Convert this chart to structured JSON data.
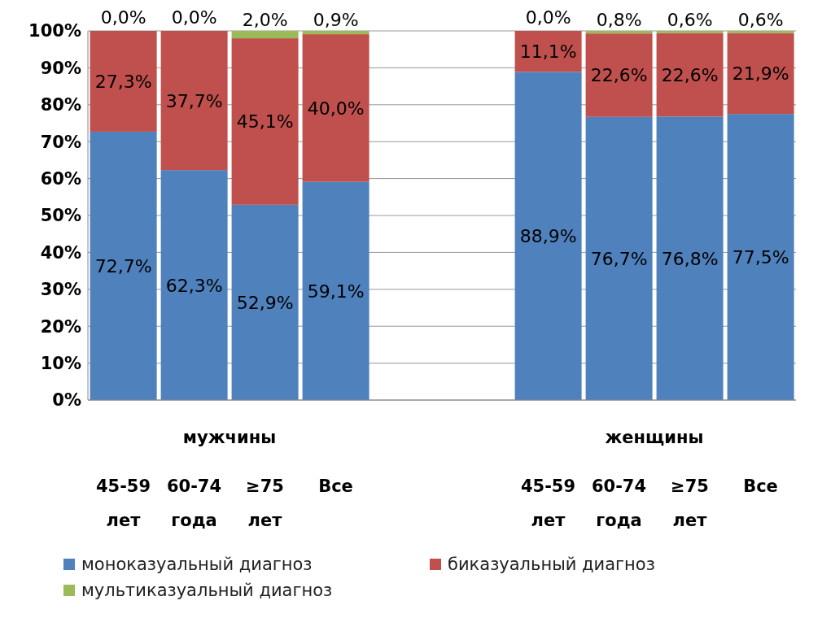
{
  "chart_data": {
    "type": "bar",
    "stacked": true,
    "categories": [
      "45-59 лет",
      "60-74 года",
      "≥75 лет",
      "Все",
      null,
      null,
      "45-59 лет",
      "60-74 года",
      "≥75 лет",
      "Все"
    ],
    "annotations": [
      "мужчины",
      "женщины"
    ],
    "series": [
      {
        "name": "моноказуальный  диагноз",
        "color": "#4f81bd",
        "values": [
          72.7,
          62.3,
          52.9,
          59.1,
          null,
          null,
          88.9,
          76.7,
          76.8,
          77.5
        ],
        "value_labels": [
          "72,7%",
          "62,3%",
          "52,9%",
          "59,1%",
          null,
          null,
          "88,9%",
          "76,7%",
          "76,8%",
          "77,5%"
        ]
      },
      {
        "name": "биказуальный диагноз",
        "color": "#c0504d",
        "values": [
          27.3,
          37.7,
          45.1,
          40.0,
          null,
          null,
          11.1,
          22.6,
          22.6,
          21.9
        ],
        "value_labels": [
          "27,3%",
          "37,7%",
          "45,1%",
          "40,0%",
          null,
          null,
          "11,1%",
          "22,6%",
          "22,6%",
          "21,9%"
        ]
      },
      {
        "name": "мультиказуальный диагноз",
        "color": "#9bbb59",
        "values": [
          0,
          0,
          2.0,
          0.9,
          null,
          null,
          0,
          0.8,
          0.6,
          0.6
        ],
        "value_labels": [
          "0,0%",
          "0,0%",
          "2,0%",
          "0,9%",
          null,
          null,
          "0,0%",
          "0,8%",
          "0,6%",
          "0,6%"
        ]
      }
    ],
    "ylim": [
      0,
      100
    ],
    "yticks": [
      {
        "value": 0,
        "label": "0%"
      },
      {
        "value": 10,
        "label": "10%"
      },
      {
        "value": 20,
        "label": "20%"
      },
      {
        "value": 30,
        "label": "30%"
      },
      {
        "value": 40,
        "label": "40%"
      },
      {
        "value": 50,
        "label": "50%"
      },
      {
        "value": 60,
        "label": "60%"
      },
      {
        "value": 70,
        "label": "70%"
      },
      {
        "value": 80,
        "label": "80%"
      },
      {
        "value": 90,
        "label": "90%"
      },
      {
        "value": 100,
        "label": "100%"
      }
    ],
    "grid": "y",
    "legend": "bottom"
  }
}
